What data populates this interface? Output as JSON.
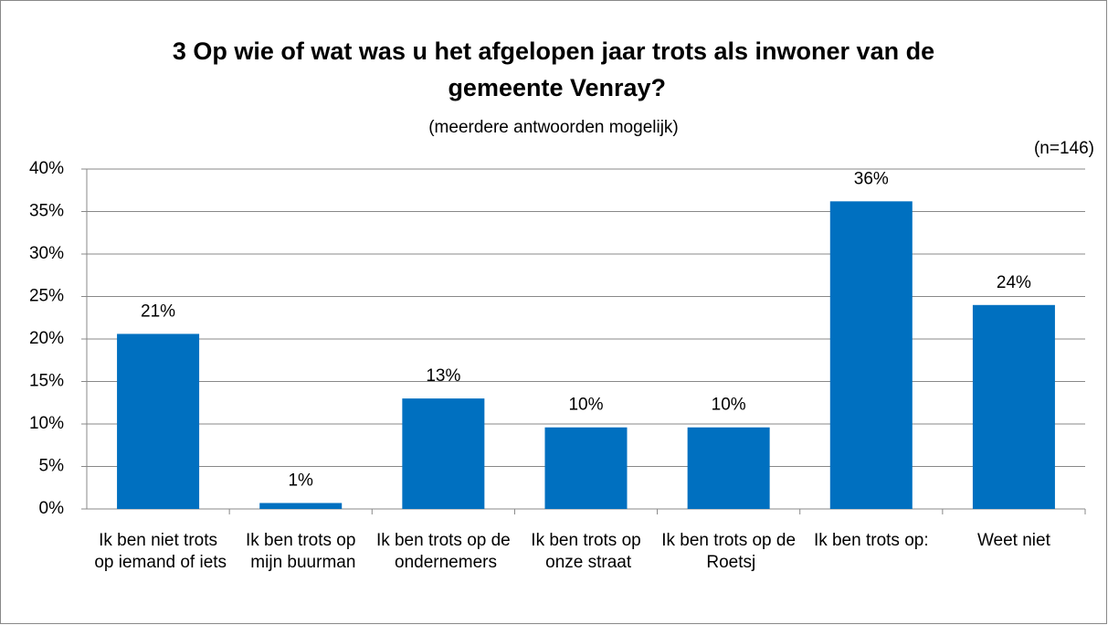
{
  "chart_data": {
    "type": "bar",
    "title": "3 Op wie of wat was u het afgelopen jaar trots als inwoner van de gemeente Venray?",
    "subtitle": "(meerdere antwoorden mogelijk)",
    "annotation": "(n=146)",
    "categories": [
      "Ik ben niet trots op iemand of iets",
      "Ik ben trots op mijn buurman",
      "Ik ben trots op de ondernemers",
      "Ik ben trots op onze straat",
      "Ik ben trots op de Roetsj",
      "Ik ben trots op:",
      "Weet niet"
    ],
    "values": [
      20.6,
      0.7,
      13.0,
      9.6,
      9.6,
      36.2,
      24.0
    ],
    "value_labels": [
      "21%",
      "1%",
      "13%",
      "10%",
      "10%",
      "36%",
      "24%"
    ],
    "color": "#0070c0",
    "ylim": [
      0,
      40
    ],
    "yticks": [
      {
        "value": 0,
        "label": "0%"
      },
      {
        "value": 5,
        "label": "5%"
      },
      {
        "value": 10,
        "label": "10%"
      },
      {
        "value": 15,
        "label": "15%"
      },
      {
        "value": 20,
        "label": "20%"
      },
      {
        "value": 25,
        "label": "25%"
      },
      {
        "value": 30,
        "label": "30%"
      },
      {
        "value": 35,
        "label": "35%"
      },
      {
        "value": 40,
        "label": "40%"
      }
    ],
    "grid": true
  }
}
